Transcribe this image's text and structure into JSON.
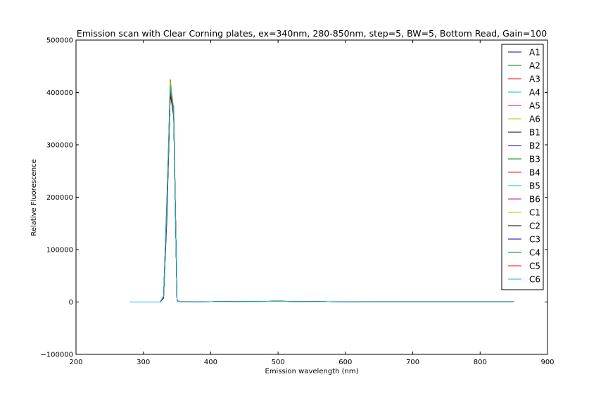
{
  "chart_data": {
    "type": "line",
    "title": "Emission scan with Clear Corning plates, ex=340nm, 280-850nm, step=5, BW=5, Bottom Read, Gain=100",
    "xlabel": "Emission wavelength (nm)",
    "ylabel": "Relative Fluorescence",
    "xlim": [
      200,
      900
    ],
    "ylim": [
      -100000,
      500000
    ],
    "xticks": [
      200,
      300,
      400,
      500,
      600,
      700,
      800,
      900
    ],
    "yticks": [
      -100000,
      0,
      100000,
      200000,
      300000,
      400000,
      500000
    ],
    "grid": false,
    "legend_position": "top-right",
    "x": [
      280,
      285,
      290,
      295,
      300,
      305,
      310,
      315,
      320,
      325,
      330,
      335,
      340,
      345,
      350,
      355,
      360,
      400,
      450,
      500,
      550,
      600,
      650,
      700,
      750,
      800,
      850
    ],
    "series": [
      {
        "name": "A1",
        "color": "#0000bf",
        "values": [
          0,
          0,
          0,
          0,
          0,
          0,
          0,
          0,
          0,
          0,
          8000,
          175000,
          420000,
          360000,
          2000,
          500,
          300,
          600,
          1200,
          1500,
          900,
          500,
          300,
          200,
          150,
          120,
          100
        ]
      },
      {
        "name": "A2",
        "color": "#007f00",
        "values": [
          0,
          0,
          0,
          0,
          0,
          0,
          0,
          0,
          0,
          0,
          10000,
          180000,
          425000,
          365000,
          2000,
          500,
          300,
          600,
          1200,
          1500,
          900,
          500,
          300,
          200,
          150,
          120,
          100
        ]
      },
      {
        "name": "A3",
        "color": "#ff0000",
        "values": [
          0,
          0,
          0,
          0,
          0,
          0,
          0,
          0,
          0,
          0,
          9000,
          185000,
          422000,
          362000,
          2000,
          500,
          300,
          600,
          1200,
          1500,
          900,
          500,
          300,
          200,
          150,
          120,
          100
        ]
      },
      {
        "name": "A4",
        "color": "#00bfbf",
        "values": [
          0,
          0,
          0,
          0,
          0,
          0,
          0,
          0,
          0,
          0,
          12000,
          190000,
          418000,
          370000,
          2000,
          500,
          300,
          600,
          1200,
          1500,
          900,
          500,
          300,
          200,
          150,
          120,
          100
        ]
      },
      {
        "name": "A5",
        "color": "#bf00bf",
        "values": [
          0,
          0,
          0,
          0,
          0,
          0,
          0,
          0,
          0,
          0,
          7000,
          170000,
          410000,
          358000,
          2000,
          500,
          300,
          600,
          1200,
          1500,
          900,
          500,
          300,
          200,
          150,
          120,
          100
        ]
      },
      {
        "name": "A6",
        "color": "#bfbf00",
        "values": [
          0,
          0,
          0,
          0,
          0,
          0,
          0,
          0,
          0,
          0,
          11000,
          182000,
          421000,
          368000,
          2000,
          500,
          300,
          600,
          1200,
          1500,
          900,
          500,
          300,
          200,
          150,
          120,
          100
        ]
      },
      {
        "name": "B1",
        "color": "#000000",
        "values": [
          0,
          0,
          0,
          0,
          0,
          0,
          0,
          0,
          0,
          0,
          8000,
          160000,
          400000,
          355000,
          2000,
          500,
          300,
          600,
          1200,
          1500,
          900,
          500,
          300,
          200,
          150,
          120,
          100
        ]
      },
      {
        "name": "B2",
        "color": "#0000bf",
        "values": [
          0,
          0,
          0,
          0,
          0,
          0,
          0,
          0,
          0,
          0,
          9000,
          200000,
          395000,
          372000,
          2000,
          500,
          300,
          600,
          1200,
          1500,
          900,
          500,
          300,
          200,
          150,
          120,
          100
        ]
      },
      {
        "name": "B3",
        "color": "#007f00",
        "values": [
          0,
          0,
          0,
          0,
          0,
          0,
          0,
          0,
          0,
          0,
          10000,
          178000,
          412000,
          366000,
          2000,
          500,
          300,
          600,
          1200,
          1500,
          900,
          500,
          300,
          200,
          150,
          120,
          100
        ]
      },
      {
        "name": "B4",
        "color": "#ff0000",
        "values": [
          0,
          0,
          0,
          0,
          0,
          0,
          0,
          0,
          0,
          0,
          9500,
          183000,
          408000,
          361000,
          2000,
          500,
          300,
          600,
          1200,
          1500,
          900,
          500,
          300,
          200,
          150,
          120,
          100
        ]
      },
      {
        "name": "B5",
        "color": "#00bfbf",
        "values": [
          0,
          0,
          0,
          0,
          0,
          0,
          0,
          0,
          0,
          0,
          10500,
          188000,
          405000,
          369000,
          2000,
          500,
          300,
          600,
          1200,
          1500,
          900,
          500,
          300,
          200,
          150,
          120,
          100
        ]
      },
      {
        "name": "B6",
        "color": "#bf00bf",
        "values": [
          0,
          0,
          0,
          0,
          0,
          0,
          0,
          0,
          0,
          0,
          8500,
          172000,
          402000,
          359000,
          2000,
          500,
          300,
          600,
          1200,
          1500,
          900,
          500,
          300,
          200,
          150,
          120,
          100
        ]
      },
      {
        "name": "C1",
        "color": "#bfbf00",
        "values": [
          0,
          0,
          0,
          0,
          0,
          0,
          0,
          0,
          0,
          0,
          11500,
          186000,
          415000,
          367000,
          2000,
          500,
          300,
          600,
          1200,
          1500,
          900,
          500,
          300,
          200,
          150,
          120,
          100
        ]
      },
      {
        "name": "C2",
        "color": "#000000",
        "values": [
          0,
          0,
          0,
          0,
          0,
          0,
          0,
          0,
          0,
          0,
          9000,
          176000,
          398000,
          357000,
          2000,
          500,
          300,
          600,
          1200,
          1500,
          900,
          500,
          300,
          200,
          150,
          120,
          100
        ]
      },
      {
        "name": "C3",
        "color": "#0000bf",
        "values": [
          0,
          0,
          0,
          0,
          0,
          0,
          0,
          0,
          0,
          0,
          10000,
          184000,
          411000,
          364000,
          2000,
          500,
          300,
          600,
          1200,
          1500,
          900,
          500,
          300,
          200,
          150,
          120,
          100
        ]
      },
      {
        "name": "C4",
        "color": "#007f00",
        "values": [
          0,
          0,
          0,
          0,
          0,
          0,
          0,
          0,
          0,
          0,
          9500,
          181000,
          407000,
          363000,
          2000,
          500,
          300,
          600,
          1200,
          1500,
          900,
          500,
          300,
          200,
          150,
          120,
          100
        ]
      },
      {
        "name": "C5",
        "color": "#ff0000",
        "values": [
          0,
          0,
          0,
          0,
          0,
          0,
          0,
          0,
          0,
          0,
          10000,
          179000,
          404000,
          360000,
          2000,
          500,
          300,
          600,
          1200,
          1500,
          900,
          500,
          300,
          200,
          150,
          120,
          100
        ]
      },
      {
        "name": "C6",
        "color": "#00bfbf",
        "values": [
          0,
          0,
          0,
          0,
          0,
          0,
          0,
          0,
          0,
          0,
          10500,
          187000,
          413000,
          365000,
          2000,
          500,
          300,
          600,
          1200,
          1500,
          900,
          500,
          300,
          200,
          150,
          120,
          100
        ]
      }
    ]
  }
}
